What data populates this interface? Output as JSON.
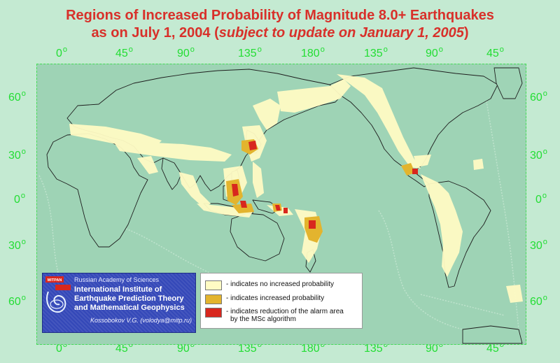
{
  "title": {
    "line1": "Regions of Increased Probability of Magnitude 8.0+ Earthquakes",
    "line2_prefix": "as on July 1, 2004 (",
    "line2_italic": "subject to update on January 1, 2005",
    "line2_suffix": ")"
  },
  "axes": {
    "longitude_top": [
      "0",
      "45",
      "90",
      "135",
      "180",
      "135",
      "90",
      "45"
    ],
    "longitude_bottom": [
      "0",
      "45",
      "90",
      "135",
      "180",
      "135",
      "90",
      "45"
    ],
    "latitude_left": [
      "60",
      "30",
      "0",
      "30",
      "60"
    ],
    "latitude_right": [
      "60",
      "30",
      "0",
      "30",
      "60"
    ],
    "degree_symbol": "o"
  },
  "institute": {
    "academy": "Russian Academy of Sciences",
    "name_line1": "International Institute of",
    "name_line2": "Earthquake Prediction Theory",
    "name_line3": "and Mathematical Geophysics",
    "author": "Kossobokov V.G. (volodya@mitp.ru)",
    "logo_text": "MITPAN"
  },
  "legend": {
    "items": [
      {
        "label": "- indicates no increased probability",
        "color": "#fffbc4"
      },
      {
        "label": "- indicates increased probability",
        "color": "#e3b42e"
      },
      {
        "label": "- indicates reduction of the alarm area",
        "label2": "by the MSc algorithm",
        "color": "#d8271e"
      }
    ]
  },
  "colors": {
    "title": "#d8302a",
    "axis_labels": "#22dd33",
    "ocean": "#9ed3b5",
    "background": "#c4ead2"
  }
}
